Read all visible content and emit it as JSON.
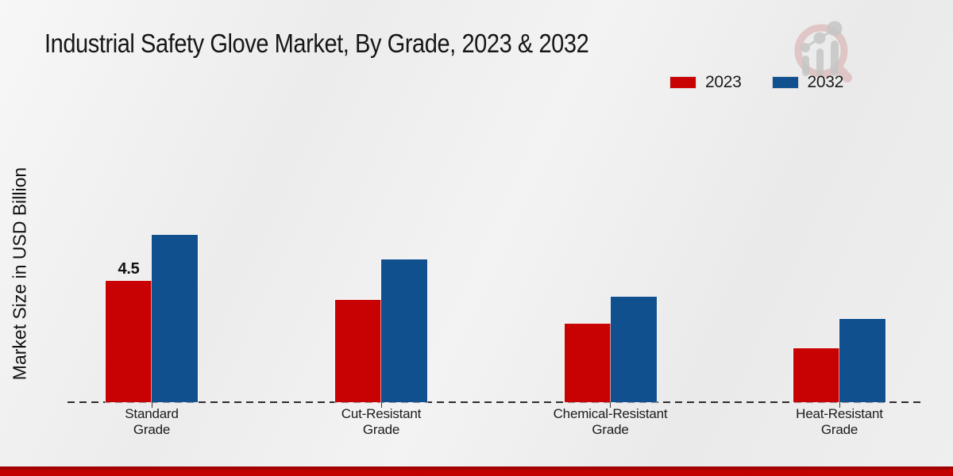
{
  "chart_data": {
    "type": "bar",
    "title": "Industrial Safety Glove Market, By Grade, 2023 & 2032",
    "ylabel": "Market Size in USD Billion",
    "xlabel": "",
    "categories": [
      "Standard Grade",
      "Cut-Resistant Grade",
      "Chemical-Resistant Grade",
      "Heat-Resistant Grade"
    ],
    "series": [
      {
        "name": "2023",
        "color": "#c80202",
        "values": [
          4.5,
          3.8,
          2.9,
          2.0
        ]
      },
      {
        "name": "2032",
        "color": "#10508f",
        "values": [
          6.2,
          5.3,
          3.9,
          3.1
        ]
      }
    ],
    "data_labels": [
      {
        "series": "2023",
        "category": "Standard Grade",
        "text": "4.5"
      }
    ],
    "ylim": [
      0,
      7
    ],
    "grid": false,
    "axis_style": "dashed-baseline-only",
    "legend_position": "top-right"
  },
  "icons": {
    "watermark": "market-research-future-magnifier-chart-logo"
  },
  "colors": {
    "series_2023": "#c80202",
    "series_2032": "#10508f",
    "footer_strip": "#c60101",
    "baseline": "#2e2e2e",
    "background": "#efefef"
  }
}
